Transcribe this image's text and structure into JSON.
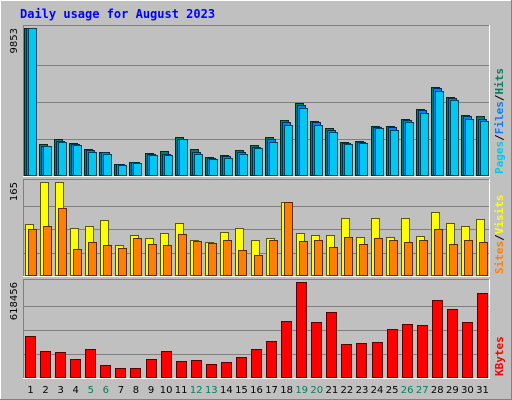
{
  "chart_data": {
    "type": "bar",
    "title": "Daily usage for August 2023",
    "categories": [
      "1",
      "2",
      "3",
      "4",
      "5",
      "6",
      "7",
      "8",
      "9",
      "10",
      "11",
      "12",
      "13",
      "14",
      "15",
      "16",
      "17",
      "18",
      "19",
      "20",
      "21",
      "22",
      "23",
      "24",
      "25",
      "26",
      "27",
      "28",
      "29",
      "30",
      "31"
    ],
    "weekend_days": [
      "5",
      "6",
      "12",
      "13",
      "19",
      "20",
      "26",
      "27"
    ],
    "grid": true,
    "panels": [
      {
        "name": "top",
        "max_label": "9853",
        "ylim": [
          0,
          9853
        ],
        "right_label_parts": [
          "Pages",
          "/",
          "Files",
          "/",
          "Hits"
        ],
        "series": [
          {
            "name": "Hits",
            "color": "#00805c",
            "values": [
              9853,
              2112,
              2437,
              2176,
              1788,
              1624,
              812,
              934,
              1503,
              1644,
              2600,
              1787,
              1260,
              1422,
              1747,
              2031,
              2600,
              3736,
              4874,
              3655,
              3168,
              2293,
              2356,
              3331,
              3331,
              3818,
              4466,
              5928,
              5278,
              4060,
              3980
            ]
          },
          {
            "name": "Files",
            "color": "#0080ff",
            "values": [
              9853,
              2030,
              2356,
              2112,
              1706,
              1624,
              812,
              934,
              1462,
              1462,
              2437,
              1624,
              1218,
              1299,
              1624,
              1950,
              2437,
              3574,
              4711,
              3574,
              3087,
              2193,
              2274,
              3249,
              3249,
              3736,
              4385,
              5847,
              5197,
              3980,
              3818
            ]
          },
          {
            "name": "Pages",
            "color": "#00c8f0",
            "values": [
              9853,
              2030,
              2274,
              2031,
              1625,
              1462,
              730,
              853,
              1380,
              1382,
              2437,
              1462,
              1137,
              1218,
              1462,
              1868,
              2274,
              3411,
              4548,
              3411,
              2923,
              2112,
              2193,
              3168,
              3087,
              3574,
              4222,
              5685,
              5034,
              3818,
              3656
            ]
          }
        ]
      },
      {
        "name": "middle",
        "max_label": "165",
        "ylim": [
          0,
          165
        ],
        "right_label_parts": [
          "Sites",
          "/",
          "Visits"
        ],
        "series": [
          {
            "name": "Visits",
            "color": "#ffff00",
            "values": [
              91,
              165,
              165,
              84,
              87,
              99,
              54,
              72,
              66,
              76,
              93,
              64,
              60,
              78,
              84,
              63,
              66,
              130,
              76,
              72,
              72,
              101,
              69,
              101,
              69,
              101,
              71,
              112,
              93,
              87,
              100
            ]
          },
          {
            "name": "Sites",
            "color": "#ff8000",
            "values": [
              83,
              87,
              119,
              47,
              60,
              54,
              50,
              67,
              56,
              54,
              73,
              61,
              58,
              63,
              46,
              36,
              63,
              130,
              61,
              63,
              51,
              69,
              57,
              66,
              63,
              60,
              64,
              83,
              56,
              63,
              60
            ]
          }
        ]
      },
      {
        "name": "bottom",
        "max_label": "618456",
        "ylim": [
          0,
          618456
        ],
        "right_label_parts": [
          "KBytes"
        ],
        "series": [
          {
            "name": "KBytes",
            "color": "#ff0000",
            "values": [
              272000,
              175000,
              165000,
              123000,
              185000,
              82000,
              62000,
              62000,
              124000,
              175000,
              111000,
              113000,
              93000,
              104000,
              134000,
              185000,
              237000,
              366000,
              618456,
              360000,
              428000,
              217000,
              223000,
              232000,
              315000,
              350000,
              340000,
              500000,
              445000,
              360000,
              547000
            ]
          }
        ]
      }
    ]
  }
}
